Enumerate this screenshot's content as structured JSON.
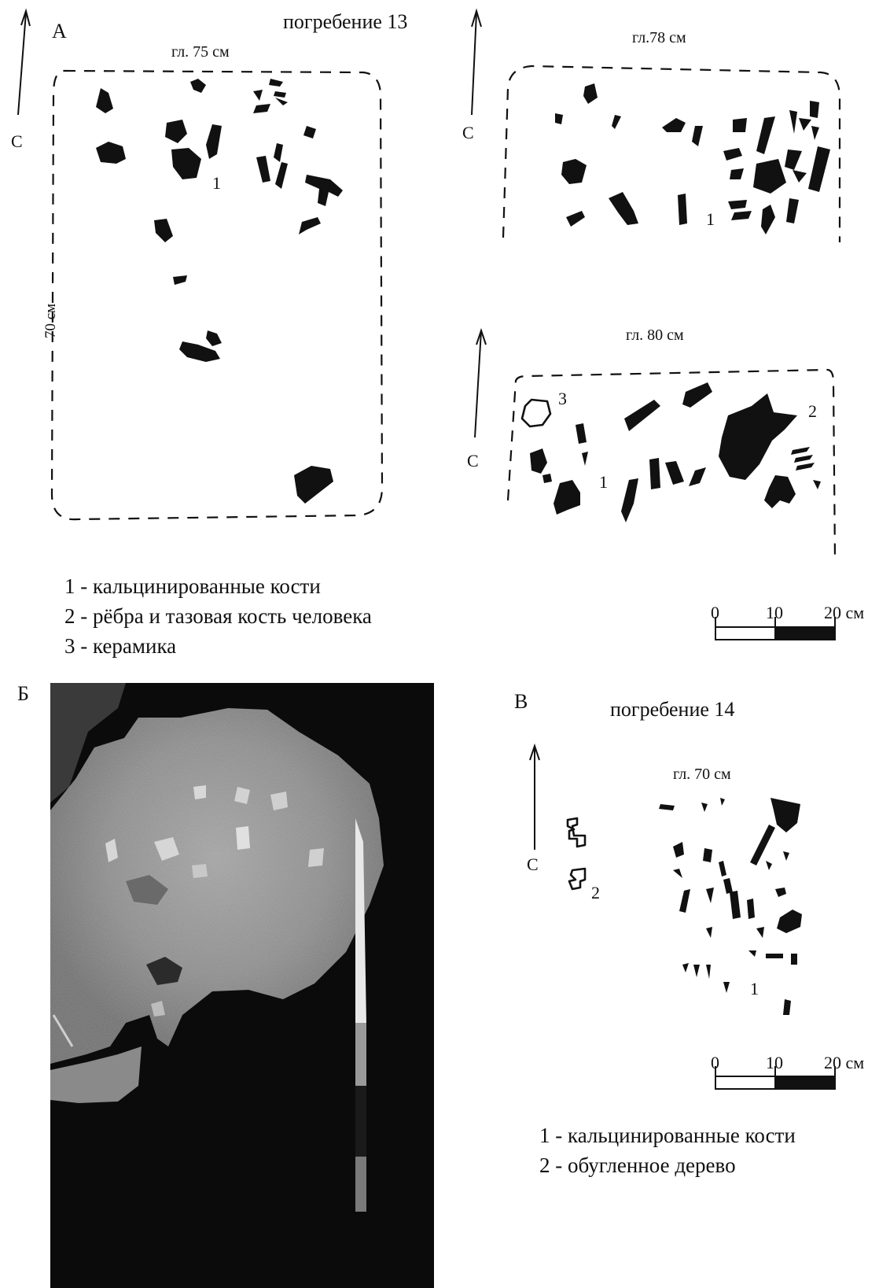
{
  "panelA": {
    "letter": "А",
    "burial_title": "погребение 13",
    "north": "С",
    "plan1": {
      "depth": "гл. 75 см",
      "width": "70 см",
      "marker": "1"
    },
    "plan2": {
      "depth": "гл.78 см",
      "marker": "1"
    },
    "plan3": {
      "depth": "гл. 80 см",
      "marker1": "1",
      "marker2": "2",
      "marker3": "3"
    },
    "legend": [
      "1 - кальцинированные кости",
      "2 - рёбра и тазовая кость человека",
      "3 - керамика"
    ],
    "scale": {
      "t0": "0",
      "t10": "10",
      "t20": "20 см"
    }
  },
  "panelB": {
    "letter": "Б"
  },
  "panelV": {
    "letter": "В",
    "burial_title": "погребение 14",
    "north": "С",
    "depth": "гл. 70 см",
    "marker1": "1",
    "marker2": "2",
    "legend": [
      "1 - кальцинированные кости",
      "2 - обугленное дерево"
    ],
    "scale": {
      "t0": "0",
      "t10": "10",
      "t20": "20 см"
    }
  }
}
